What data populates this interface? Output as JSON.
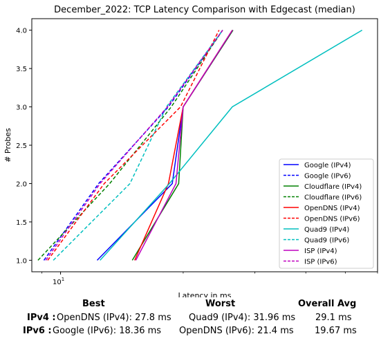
{
  "chart_data": {
    "type": "line",
    "title": "December_2022: TCP Latency Comparison with Edgecast (median)",
    "xlabel": "Latency in ms",
    "ylabel": "# Probes",
    "xscale": "log",
    "xlim": [
      8.5,
      60
    ],
    "ylim": [
      0.85,
      4.15
    ],
    "x_tick_labels": [
      "10^1"
    ],
    "y_ticks": [
      1.0,
      1.5,
      2.0,
      2.5,
      3.0,
      3.5,
      4.0
    ],
    "y_tick_labels": [
      "1.0",
      "1.5",
      "2.0",
      "2.5",
      "3.0",
      "3.5",
      "4.0"
    ],
    "grid": false,
    "legend_position": "lower right",
    "series": [
      {
        "name": "Google (IPv4)",
        "color": "#0000ff",
        "style": "solid",
        "x": [
          12.3,
          18.8,
          20.0,
          26.5
        ],
        "y": [
          1,
          2,
          3,
          4
        ]
      },
      {
        "name": "Google (IPv6)",
        "color": "#0000ff",
        "style": "dashed",
        "x": [
          9.1,
          12.4,
          18.4,
          25.0
        ],
        "y": [
          1,
          2,
          3,
          4
        ]
      },
      {
        "name": "Cloudflare (IPv4)",
        "color": "#008000",
        "style": "solid",
        "x": [
          15.0,
          19.5,
          20.0,
          26.5
        ],
        "y": [
          1,
          2,
          3,
          4
        ]
      },
      {
        "name": "Cloudflare (IPv6)",
        "color": "#008000",
        "style": "dashed",
        "x": [
          8.8,
          13.2,
          18.7,
          25.0
        ],
        "y": [
          1,
          2,
          3,
          4
        ]
      },
      {
        "name": "OpenDNS (IPv4)",
        "color": "#ff0000",
        "style": "solid",
        "x": [
          15.2,
          18.4,
          20.0,
          26.4
        ],
        "y": [
          1,
          2,
          3,
          4
        ]
      },
      {
        "name": "OpenDNS (IPv6)",
        "color": "#ff0000",
        "style": "dashed",
        "x": [
          9.3,
          12.8,
          19.7,
          24.5
        ],
        "y": [
          1,
          2,
          3,
          4
        ]
      },
      {
        "name": "Quad9 (IPv4)",
        "color": "#00bfbf",
        "style": "solid",
        "x": [
          12.5,
          18.5,
          26.4,
          55.0
        ],
        "y": [
          1,
          2,
          3,
          4
        ]
      },
      {
        "name": "Quad9 (IPv6)",
        "color": "#00bfbf",
        "style": "dashed",
        "x": [
          9.6,
          14.8,
          18.2,
          25.0
        ],
        "y": [
          1,
          2,
          3,
          4
        ]
      },
      {
        "name": "ISP (IPv4)",
        "color": "#bf00bf",
        "style": "solid",
        "x": [
          15.3,
          19.2,
          20.0,
          26.4
        ],
        "y": [
          1,
          2,
          3,
          4
        ]
      },
      {
        "name": "ISP (IPv6)",
        "color": "#bf00bf",
        "style": "dashed",
        "x": [
          9.2,
          12.5,
          18.3,
          25.0
        ],
        "y": [
          1,
          2,
          3,
          4
        ]
      }
    ]
  },
  "summary": {
    "headers": {
      "best": "Best",
      "worst": "Worst",
      "avg": "Overall Avg"
    },
    "rows": [
      {
        "label": "IPv4 :",
        "best": "OpenDNS (IPv4): 27.8 ms",
        "worst": "Quad9 (IPv4): 31.96 ms",
        "avg": "29.1 ms"
      },
      {
        "label": "IPv6 :",
        "best": "Google (IPv6): 18.36 ms",
        "worst": "OpenDNS (IPv6): 21.4 ms",
        "avg": "19.67 ms"
      }
    ]
  }
}
